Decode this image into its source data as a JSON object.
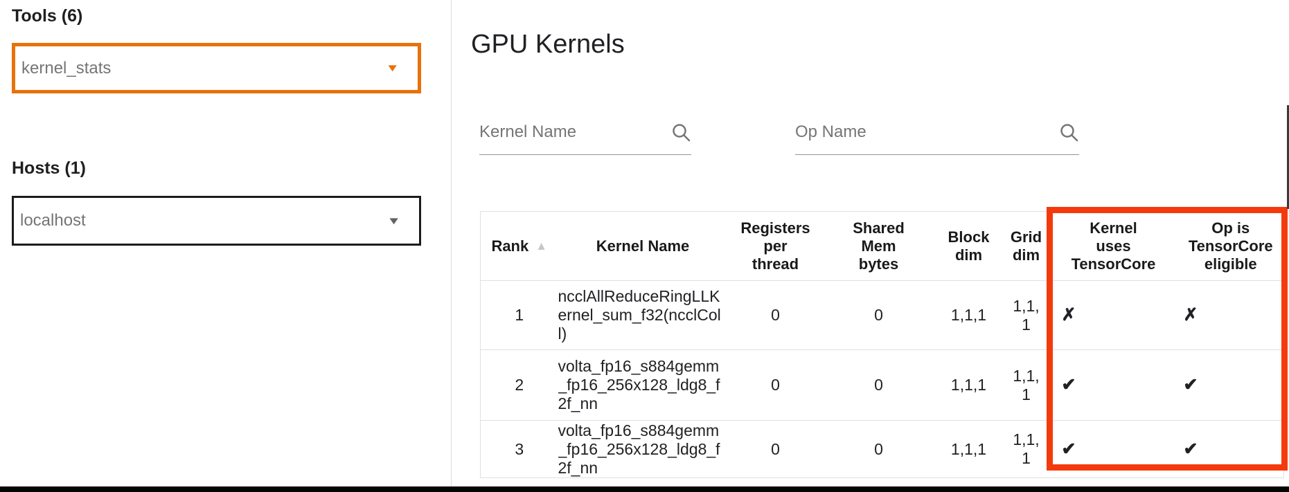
{
  "sidebar": {
    "tools": {
      "label": "Tools (6)",
      "selected": "kernel_stats",
      "caret_icon": "▼"
    },
    "hosts": {
      "label": "Hosts (1)",
      "selected": "localhost",
      "caret_icon": "▼"
    }
  },
  "main": {
    "title": "GPU Kernels",
    "search": {
      "kernel_name_placeholder": "Kernel Name",
      "op_name_placeholder": "Op Name"
    },
    "table": {
      "sort_icon": "▲",
      "sorted_column": "Rank",
      "columns": [
        "Rank",
        "Kernel Name",
        "Registers\nper\nthread",
        "Shared\nMem\nbytes",
        "Block\ndim",
        "Grid\ndim",
        "Kernel\nuses\nTensorCore",
        "Op is\nTensorCore\neligible"
      ],
      "rows": [
        {
          "rank": "1",
          "kernel_name": "ncclAllReduceRingLLKernel_sum_f32(ncclColl)",
          "registers_per_thread": "0",
          "shared_mem_bytes": "0",
          "block_dim": "1,1,1",
          "grid_dim": "1,1,1",
          "kernel_uses_tensorcore": "✗",
          "op_tensorcore_eligible": "✗"
        },
        {
          "rank": "2",
          "kernel_name": "volta_fp16_s884gemm_fp16_256x128_ldg8_f2f_nn",
          "registers_per_thread": "0",
          "shared_mem_bytes": "0",
          "block_dim": "1,1,1",
          "grid_dim": "1,1,1",
          "kernel_uses_tensorcore": "✔",
          "op_tensorcore_eligible": "✔"
        },
        {
          "rank": "3",
          "kernel_name": "volta_fp16_s884gemm_fp16_256x128_ldg8_f2f_nn",
          "registers_per_thread": "0",
          "shared_mem_bytes": "0",
          "block_dim": "1,1,1",
          "grid_dim": "1,1,1",
          "kernel_uses_tensorcore": "✔",
          "op_tensorcore_eligible": "✔"
        }
      ]
    },
    "annotation": {
      "highlight_color": "#f43a0c"
    }
  },
  "colors": {
    "accent_orange": "#e8710a",
    "highlight_red": "#f43a0c",
    "divider_gray": "#dadce0"
  }
}
